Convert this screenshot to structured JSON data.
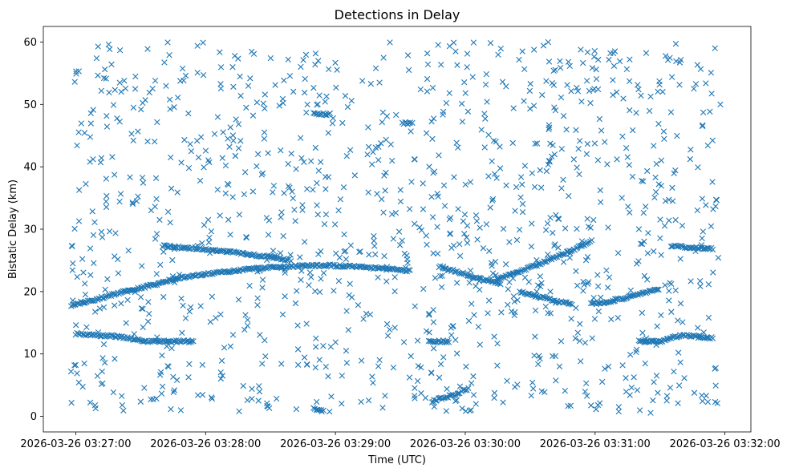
{
  "chart_data": {
    "type": "scatter",
    "title": "Detections in Delay",
    "xlabel": "Time (UTC)",
    "ylabel": "Bistatic Delay (km)",
    "x_type": "datetime",
    "xlim": [
      "2026-03-26 03:26:45",
      "2026-03-26 03:32:12"
    ],
    "ylim": [
      -2.5,
      62.5
    ],
    "x_ticks": [
      "2026-03-26 03:27:00",
      "2026-03-26 03:28:00",
      "2026-03-26 03:29:00",
      "2026-03-26 03:30:00",
      "2026-03-26 03:31:00",
      "2026-03-26 03:32:00"
    ],
    "y_ticks": [
      0,
      10,
      20,
      30,
      40,
      50,
      60
    ],
    "marker": "x",
    "marker_color": "#1f77b4",
    "grid": false,
    "series": [
      {
        "tracks": [
          {
            "points": [
              [
                "2026-03-26 03:26:58",
                17.8
              ],
              [
                "2026-03-26 03:27:07",
                18.5
              ],
              [
                "2026-03-26 03:27:15",
                19.3
              ],
              [
                "2026-03-26 03:27:25",
                20.2
              ],
              [
                "2026-03-26 03:27:35",
                21.0
              ],
              [
                "2026-03-26 03:27:45",
                22.0
              ],
              [
                "2026-03-26 03:27:55",
                22.6
              ],
              [
                "2026-03-26 03:28:10",
                23.2
              ],
              [
                "2026-03-26 03:28:20",
                23.6
              ],
              [
                "2026-03-26 03:28:35",
                24.0
              ],
              [
                "2026-03-26 03:28:55",
                24.2
              ],
              [
                "2026-03-26 03:29:10",
                24.0
              ],
              [
                "2026-03-26 03:29:25",
                23.6
              ],
              [
                "2026-03-26 03:29:35",
                23.3
              ]
            ]
          },
          {
            "points": [
              [
                "2026-03-26 03:29:48",
                24.0
              ],
              [
                "2026-03-26 03:29:55",
                23.3
              ],
              [
                "2026-03-26 03:30:02",
                22.5
              ],
              [
                "2026-03-26 03:30:10",
                21.8
              ],
              [
                "2026-03-26 03:30:17",
                21.2
              ]
            ]
          },
          {
            "points": [
              [
                "2026-03-26 03:30:15",
                22.0
              ],
              [
                "2026-03-26 03:30:25",
                23.3
              ],
              [
                "2026-03-26 03:30:35",
                24.5
              ],
              [
                "2026-03-26 03:30:45",
                26.0
              ],
              [
                "2026-03-26 03:30:55",
                27.5
              ],
              [
                "2026-03-26 03:30:59",
                28.2
              ]
            ]
          },
          {
            "points": [
              [
                "2026-03-26 03:30:25",
                20.0
              ],
              [
                "2026-03-26 03:30:33",
                19.3
              ],
              [
                "2026-03-26 03:30:42",
                18.5
              ],
              [
                "2026-03-26 03:30:50",
                18.0
              ]
            ]
          },
          {
            "points": [
              [
                "2026-03-26 03:30:58",
                18.0
              ],
              [
                "2026-03-26 03:31:08",
                18.5
              ],
              [
                "2026-03-26 03:31:18",
                19.3
              ],
              [
                "2026-03-26 03:31:30",
                20.5
              ]
            ]
          },
          {
            "points": [
              [
                "2026-03-26 03:31:35",
                27.3
              ],
              [
                "2026-03-26 03:31:55",
                26.8
              ]
            ]
          },
          {
            "points": [
              [
                "2026-03-26 03:27:40",
                27.3
              ],
              [
                "2026-03-26 03:28:00",
                26.8
              ],
              [
                "2026-03-26 03:28:20",
                26.0
              ],
              [
                "2026-03-26 03:28:40",
                25.0
              ]
            ]
          },
          {
            "points": [
              [
                "2026-03-26 03:28:50",
                48.5
              ],
              [
                "2026-03-26 03:28:58",
                48.4
              ]
            ]
          },
          {
            "points": [
              [
                "2026-03-26 03:29:31",
                47.0
              ],
              [
                "2026-03-26 03:29:36",
                47.0
              ]
            ]
          },
          {
            "points": [
              [
                "2026-03-26 03:27:00",
                13.2
              ],
              [
                "2026-03-26 03:27:20",
                12.8
              ],
              [
                "2026-03-26 03:27:32",
                12.0
              ],
              [
                "2026-03-26 03:27:45",
                12.0
              ],
              [
                "2026-03-26 03:27:55",
                12.0
              ]
            ]
          },
          {
            "points": [
              [
                "2026-03-26 03:29:43",
                12.0
              ],
              [
                "2026-03-26 03:29:53",
                12.0
              ]
            ]
          },
          {
            "points": [
              [
                "2026-03-26 03:31:20",
                12.0
              ],
              [
                "2026-03-26 03:31:30",
                12.0
              ],
              [
                "2026-03-26 03:31:40",
                13.0
              ],
              [
                "2026-03-26 03:31:55",
                12.5
              ]
            ]
          },
          {
            "points": [
              [
                "2026-03-26 03:28:50",
                1.2
              ],
              [
                "2026-03-26 03:28:55",
                0.8
              ]
            ]
          },
          {
            "points": [
              [
                "2026-03-26 03:29:45",
                2.5
              ],
              [
                "2026-03-26 03:29:55",
                3.5
              ],
              [
                "2026-03-26 03:30:02",
                4.5
              ]
            ]
          }
        ],
        "scatter_density_per_second": 7,
        "scatter_y_range": [
          0.5,
          60
        ],
        "points_note_count": 2000
      }
    ]
  }
}
